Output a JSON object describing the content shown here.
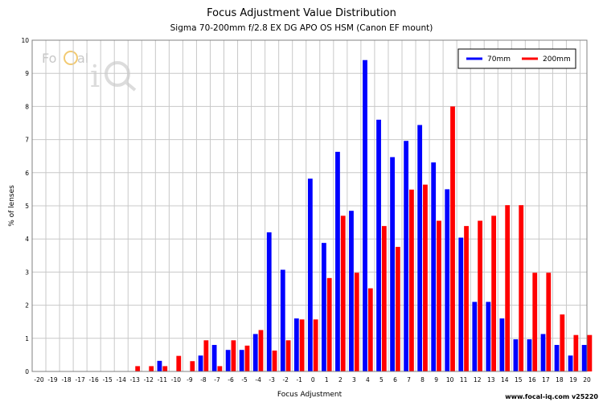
{
  "branding": {
    "logo_text": "FoCal iQ",
    "footer": "www.focal-iq.com v25220"
  },
  "chart_data": {
    "type": "bar",
    "title": "Focus Adjustment Value Distribution",
    "subtitle": "Sigma 70-200mm f/2.8 EX DG APO OS HSM (Canon EF mount)",
    "xlabel": "Focus Adjustment",
    "ylabel": "% of lenses",
    "ylim": [
      0,
      10
    ],
    "yticks": [
      0,
      1,
      2,
      3,
      4,
      5,
      6,
      7,
      8,
      9,
      10
    ],
    "grid": true,
    "legend_position": "top-right",
    "categories": [
      "-20",
      "-19",
      "-18",
      "-17",
      "-16",
      "-15",
      "-14",
      "-13",
      "-12",
      "-11",
      "-10",
      "-9",
      "-8",
      "-7",
      "-6",
      "-5",
      "-4",
      "-3",
      "-2",
      "-1",
      "0",
      "1",
      "2",
      "3",
      "4",
      "5",
      "6",
      "7",
      "8",
      "9",
      "10",
      "11",
      "12",
      "13",
      "14",
      "15",
      "16",
      "17",
      "18",
      "19",
      "20"
    ],
    "series": [
      {
        "name": "70mm",
        "color": "#0000ff",
        "values": [
          0,
          0,
          0,
          0,
          0,
          0,
          0,
          0,
          0,
          0.32,
          0,
          0,
          0.48,
          0.8,
          0.65,
          0.65,
          1.13,
          4.2,
          3.07,
          1.6,
          5.82,
          3.88,
          6.63,
          4.85,
          9.4,
          7.6,
          6.47,
          6.96,
          7.44,
          6.31,
          5.5,
          4.04,
          2.1,
          2.1,
          1.6,
          0.97,
          0.97,
          1.13,
          0.8,
          0.48,
          0.8
        ]
      },
      {
        "name": "200mm",
        "color": "#ff0000",
        "values": [
          0,
          0,
          0,
          0,
          0,
          0,
          0,
          0.16,
          0.16,
          0.16,
          0.47,
          0.31,
          0.94,
          0.16,
          0.94,
          0.78,
          1.25,
          0.63,
          0.94,
          1.57,
          1.57,
          2.82,
          4.7,
          2.98,
          2.51,
          4.39,
          3.76,
          5.49,
          5.64,
          4.55,
          8.0,
          4.39,
          4.55,
          4.7,
          5.02,
          5.02,
          2.98,
          2.98,
          1.72,
          1.1,
          1.1
        ]
      }
    ]
  }
}
